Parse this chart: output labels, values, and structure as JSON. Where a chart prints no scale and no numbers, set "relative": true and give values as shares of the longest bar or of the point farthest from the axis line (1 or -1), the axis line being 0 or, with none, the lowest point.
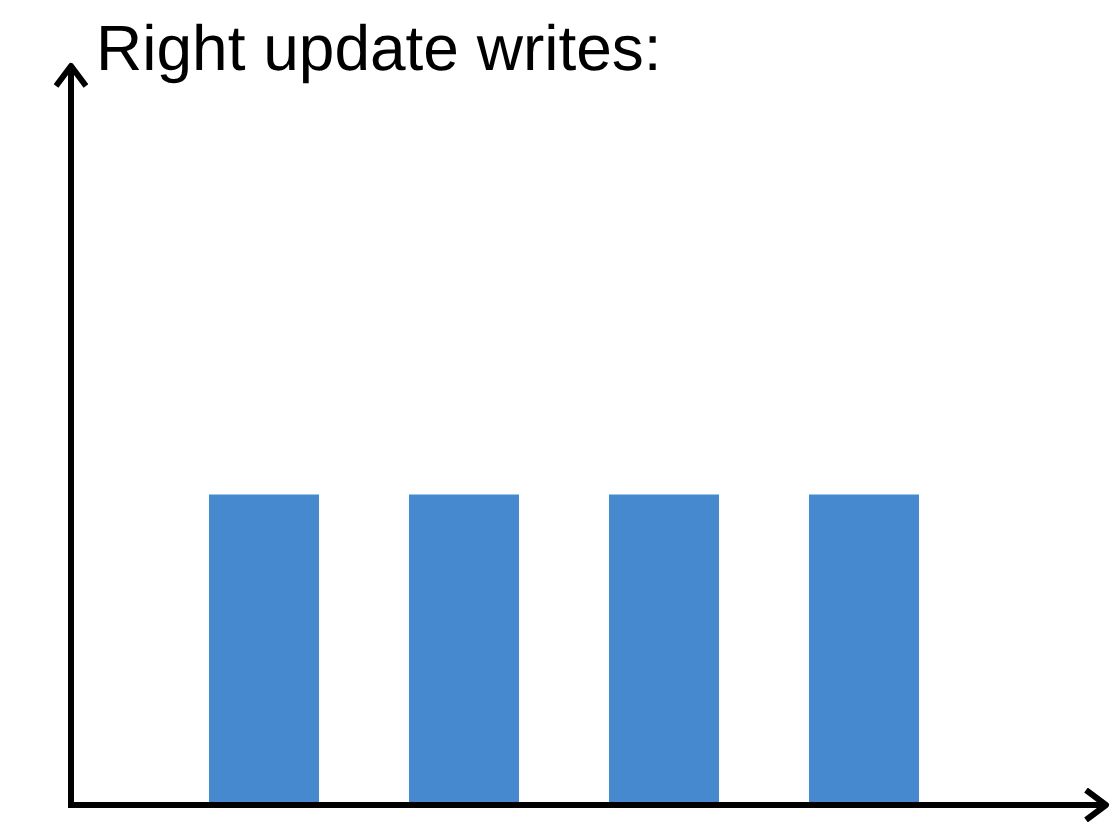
{
  "chart_data": {
    "type": "bar",
    "title": "Right update writes:",
    "categories": [
      null,
      null,
      null,
      null
    ],
    "values": [
      1,
      1,
      1,
      1
    ],
    "color": "#4689cf",
    "relative": true
  }
}
